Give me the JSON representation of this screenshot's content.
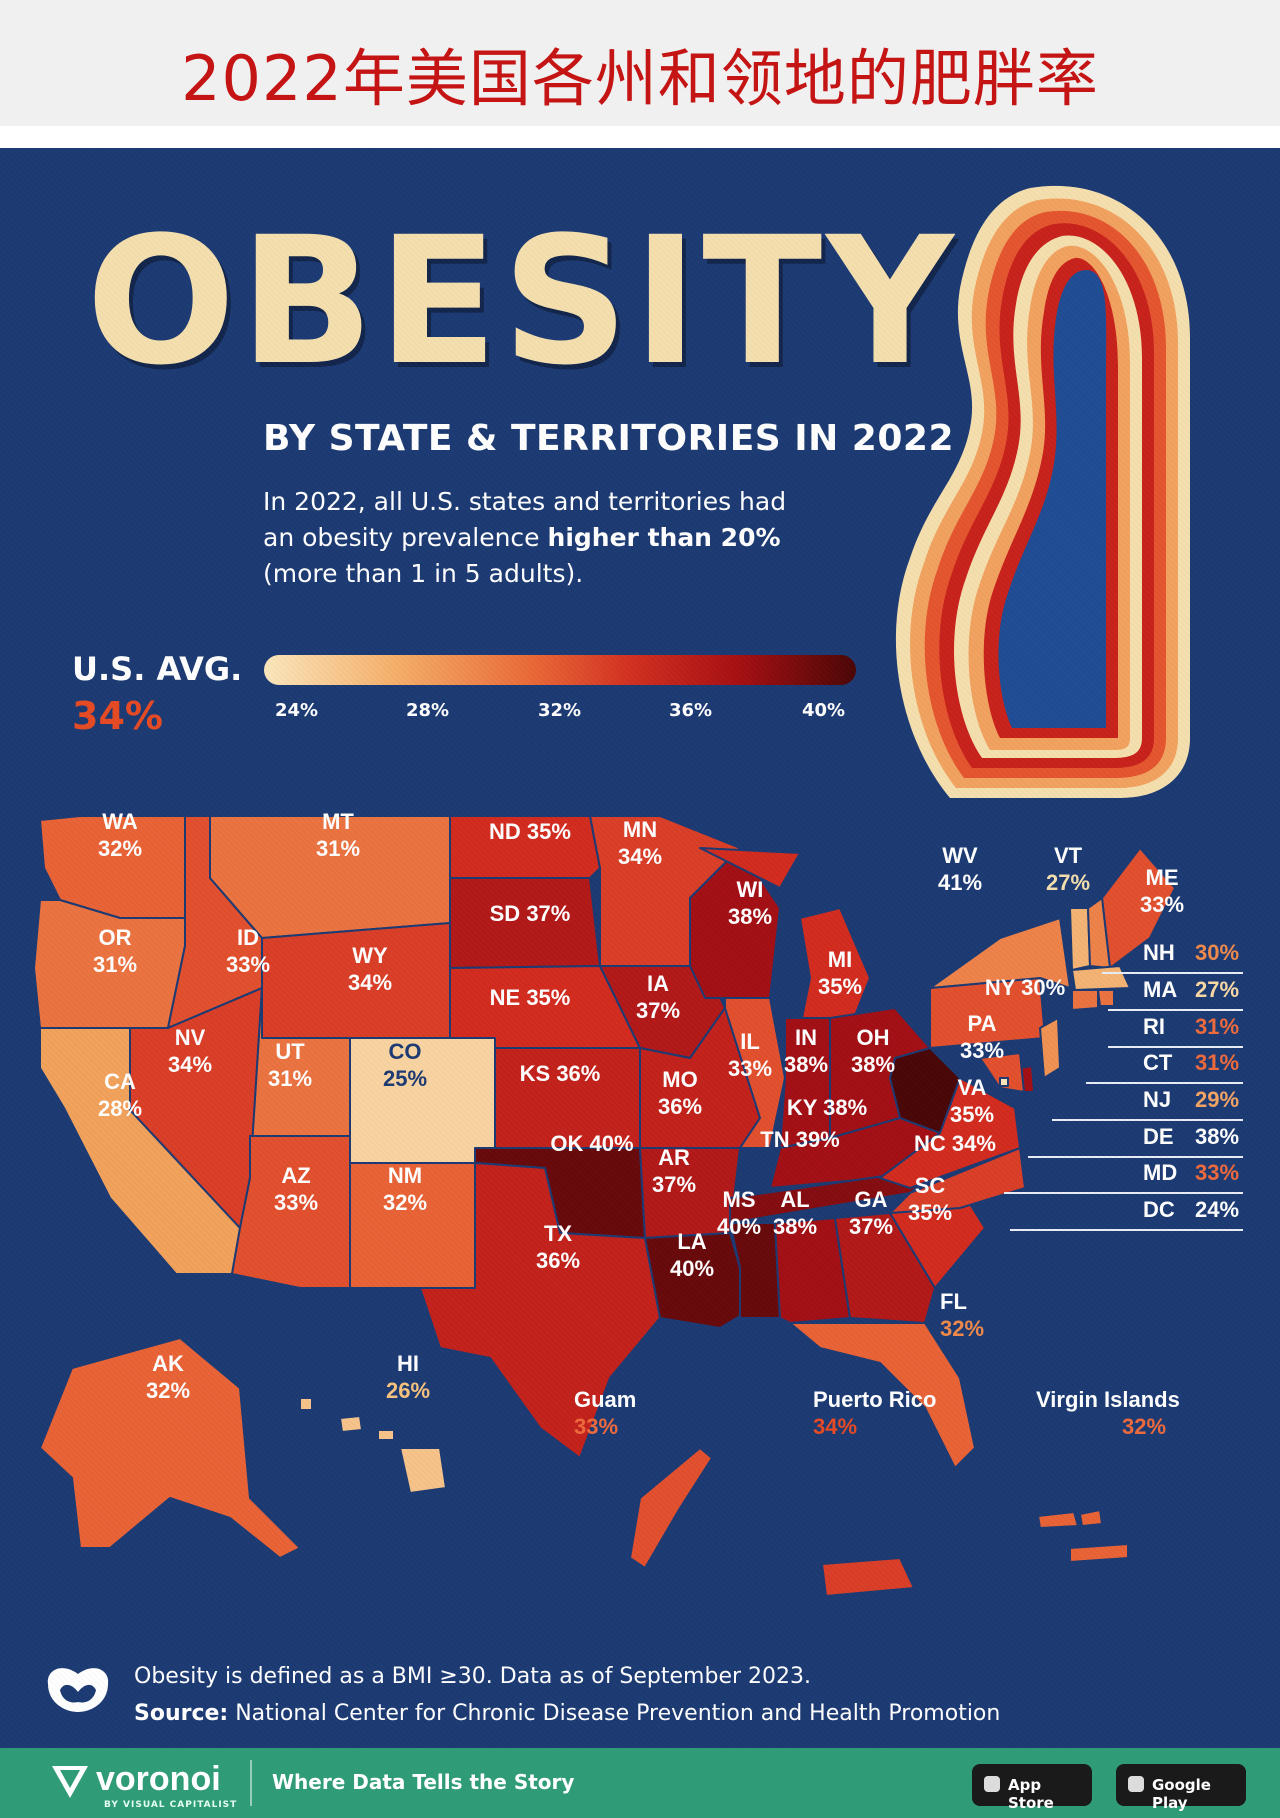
{
  "banner": {
    "title": "2022年美国各州和领地的肥胖率"
  },
  "header": {
    "title": "OBESITY",
    "subtitle": "BY STATE & TERRITORIES IN 2022",
    "intro_pre": "In 2022, all U.S. states and territories had an obesity prevalence ",
    "intro_bold": "higher than 20%",
    "intro_post": " (more than 1 in 5 adults)."
  },
  "average": {
    "label": "U.S. AVG.",
    "value": "34%"
  },
  "legend": {
    "ticks": [
      "24%",
      "28%",
      "32%",
      "36%",
      "40%"
    ]
  },
  "colors": {
    "background": "#1c3a73",
    "title": "#f5dfae",
    "scale": [
      "#fbe7bd",
      "#f6b06b",
      "#ea6a38",
      "#d23020",
      "#a70f12",
      "#4b0606"
    ]
  },
  "chart_data": {
    "type": "choropleth",
    "title": "OBESITY BY STATE & TERRITORIES IN 2022",
    "unit": "%",
    "scale_range": [
      24,
      40
    ],
    "states": [
      {
        "code": "WA",
        "value": 32
      },
      {
        "code": "OR",
        "value": 31
      },
      {
        "code": "CA",
        "value": 28
      },
      {
        "code": "ID",
        "value": 33
      },
      {
        "code": "NV",
        "value": 34
      },
      {
        "code": "MT",
        "value": 31
      },
      {
        "code": "WY",
        "value": 34
      },
      {
        "code": "UT",
        "value": 31
      },
      {
        "code": "AZ",
        "value": 33
      },
      {
        "code": "CO",
        "value": 25
      },
      {
        "code": "NM",
        "value": 32
      },
      {
        "code": "ND",
        "value": 35
      },
      {
        "code": "SD",
        "value": 37
      },
      {
        "code": "NE",
        "value": 35
      },
      {
        "code": "KS",
        "value": 36
      },
      {
        "code": "OK",
        "value": 40
      },
      {
        "code": "TX",
        "value": 36
      },
      {
        "code": "MN",
        "value": 34
      },
      {
        "code": "IA",
        "value": 37
      },
      {
        "code": "MO",
        "value": 36
      },
      {
        "code": "AR",
        "value": 37
      },
      {
        "code": "LA",
        "value": 40
      },
      {
        "code": "WI",
        "value": 38
      },
      {
        "code": "IL",
        "value": 33
      },
      {
        "code": "MI",
        "value": 35
      },
      {
        "code": "IN",
        "value": 38
      },
      {
        "code": "OH",
        "value": 38
      },
      {
        "code": "KY",
        "value": 38
      },
      {
        "code": "TN",
        "value": 39
      },
      {
        "code": "MS",
        "value": 40
      },
      {
        "code": "AL",
        "value": 38
      },
      {
        "code": "GA",
        "value": 37
      },
      {
        "code": "FL",
        "value": 32
      },
      {
        "code": "SC",
        "value": 35
      },
      {
        "code": "NC",
        "value": 34
      },
      {
        "code": "VA",
        "value": 35
      },
      {
        "code": "WV",
        "value": 41
      },
      {
        "code": "PA",
        "value": 33
      },
      {
        "code": "NY",
        "value": 30
      },
      {
        "code": "VT",
        "value": 27
      },
      {
        "code": "ME",
        "value": 33
      },
      {
        "code": "NH",
        "value": 30
      },
      {
        "code": "MA",
        "value": 27
      },
      {
        "code": "RI",
        "value": 31
      },
      {
        "code": "CT",
        "value": 31
      },
      {
        "code": "NJ",
        "value": 29
      },
      {
        "code": "DE",
        "value": 38
      },
      {
        "code": "MD",
        "value": 33
      },
      {
        "code": "DC",
        "value": 24
      },
      {
        "code": "AK",
        "value": 32
      },
      {
        "code": "HI",
        "value": 26
      }
    ],
    "territories": [
      {
        "name": "Guam",
        "value": 33
      },
      {
        "name": "Puerto Rico",
        "value": 34
      },
      {
        "name": "Virgin Islands",
        "value": 32
      }
    ]
  },
  "labels": {
    "WA": {
      "code": "WA",
      "pct": "32%"
    },
    "OR": {
      "code": "OR",
      "pct": "31%"
    },
    "CA": {
      "code": "CA",
      "pct": "28%"
    },
    "ID": {
      "code": "ID",
      "pct": "33%"
    },
    "NV": {
      "code": "NV",
      "pct": "34%"
    },
    "MT": {
      "code": "MT",
      "pct": "31%"
    },
    "WY": {
      "code": "WY",
      "pct": "34%"
    },
    "UT": {
      "code": "UT",
      "pct": "31%"
    },
    "AZ": {
      "code": "AZ",
      "pct": "33%"
    },
    "CO": {
      "code": "CO",
      "pct": "25%"
    },
    "NM": {
      "code": "NM",
      "pct": "32%"
    },
    "ND": {
      "code": "ND",
      "pct": "35%"
    },
    "SD": {
      "code": "SD",
      "pct": "37%"
    },
    "NE": {
      "code": "NE",
      "pct": "35%"
    },
    "KS": {
      "code": "KS",
      "pct": "36%"
    },
    "OK": {
      "code": "OK",
      "pct": "40%"
    },
    "TX": {
      "code": "TX",
      "pct": "36%"
    },
    "MN": {
      "code": "MN",
      "pct": "34%"
    },
    "IA": {
      "code": "IA",
      "pct": "37%"
    },
    "MO": {
      "code": "MO",
      "pct": "36%"
    },
    "AR": {
      "code": "AR",
      "pct": "37%"
    },
    "LA": {
      "code": "LA",
      "pct": "40%"
    },
    "WI": {
      "code": "WI",
      "pct": "38%"
    },
    "IL": {
      "code": "IL",
      "pct": "33%"
    },
    "MI": {
      "code": "MI",
      "pct": "35%"
    },
    "IN": {
      "code": "IN",
      "pct": "38%"
    },
    "OH": {
      "code": "OH",
      "pct": "38%"
    },
    "KY": {
      "code": "KY",
      "pct": "38%"
    },
    "TN": {
      "code": "TN",
      "pct": "39%"
    },
    "MS": {
      "code": "MS",
      "pct": "40%"
    },
    "AL": {
      "code": "AL",
      "pct": "38%"
    },
    "GA": {
      "code": "GA",
      "pct": "37%"
    },
    "FL": {
      "code": "FL",
      "pct": "32%"
    },
    "SC": {
      "code": "SC",
      "pct": "35%"
    },
    "NC": {
      "code": "NC",
      "pct": "34%"
    },
    "VA": {
      "code": "VA",
      "pct": "35%"
    },
    "WV": {
      "code": "WV",
      "pct": "41%"
    },
    "PA": {
      "code": "PA",
      "pct": "33%"
    },
    "NY": {
      "code": "NY",
      "pct": "30%"
    },
    "VT": {
      "code": "VT",
      "pct": "27%"
    },
    "ME": {
      "code": "ME",
      "pct": "33%"
    },
    "AK": {
      "code": "AK",
      "pct": "32%"
    },
    "HI": {
      "code": "HI",
      "pct": "26%"
    },
    "Guam": {
      "code": "Guam",
      "pct": "33%"
    },
    "PR": {
      "code": "Puerto Rico",
      "pct": "34%"
    },
    "VI": {
      "code": "Virgin Islands",
      "pct": "32%"
    }
  },
  "northeast_callouts": [
    {
      "code": "NH",
      "pct": "30%"
    },
    {
      "code": "MA",
      "pct": "27%"
    },
    {
      "code": "RI",
      "pct": "31%"
    },
    {
      "code": "CT",
      "pct": "31%"
    },
    {
      "code": "NJ",
      "pct": "29%"
    },
    {
      "code": "DE",
      "pct": "38%"
    },
    {
      "code": "MD",
      "pct": "33%"
    },
    {
      "code": "DC",
      "pct": "24%"
    }
  ],
  "footer": {
    "note": "Obesity is defined as a BMI ≥30. Data as of September 2023.",
    "source_label": "Source:",
    "source_text": " National Center for Chronic Disease Prevention and Health Promotion"
  },
  "bottom_bar": {
    "brand": "voronoi",
    "brand_sub": "BY VISUAL CAPITALIST",
    "tagline": "Where Data Tells the Story",
    "app_store": "App Store",
    "google_play": "Google Play"
  }
}
